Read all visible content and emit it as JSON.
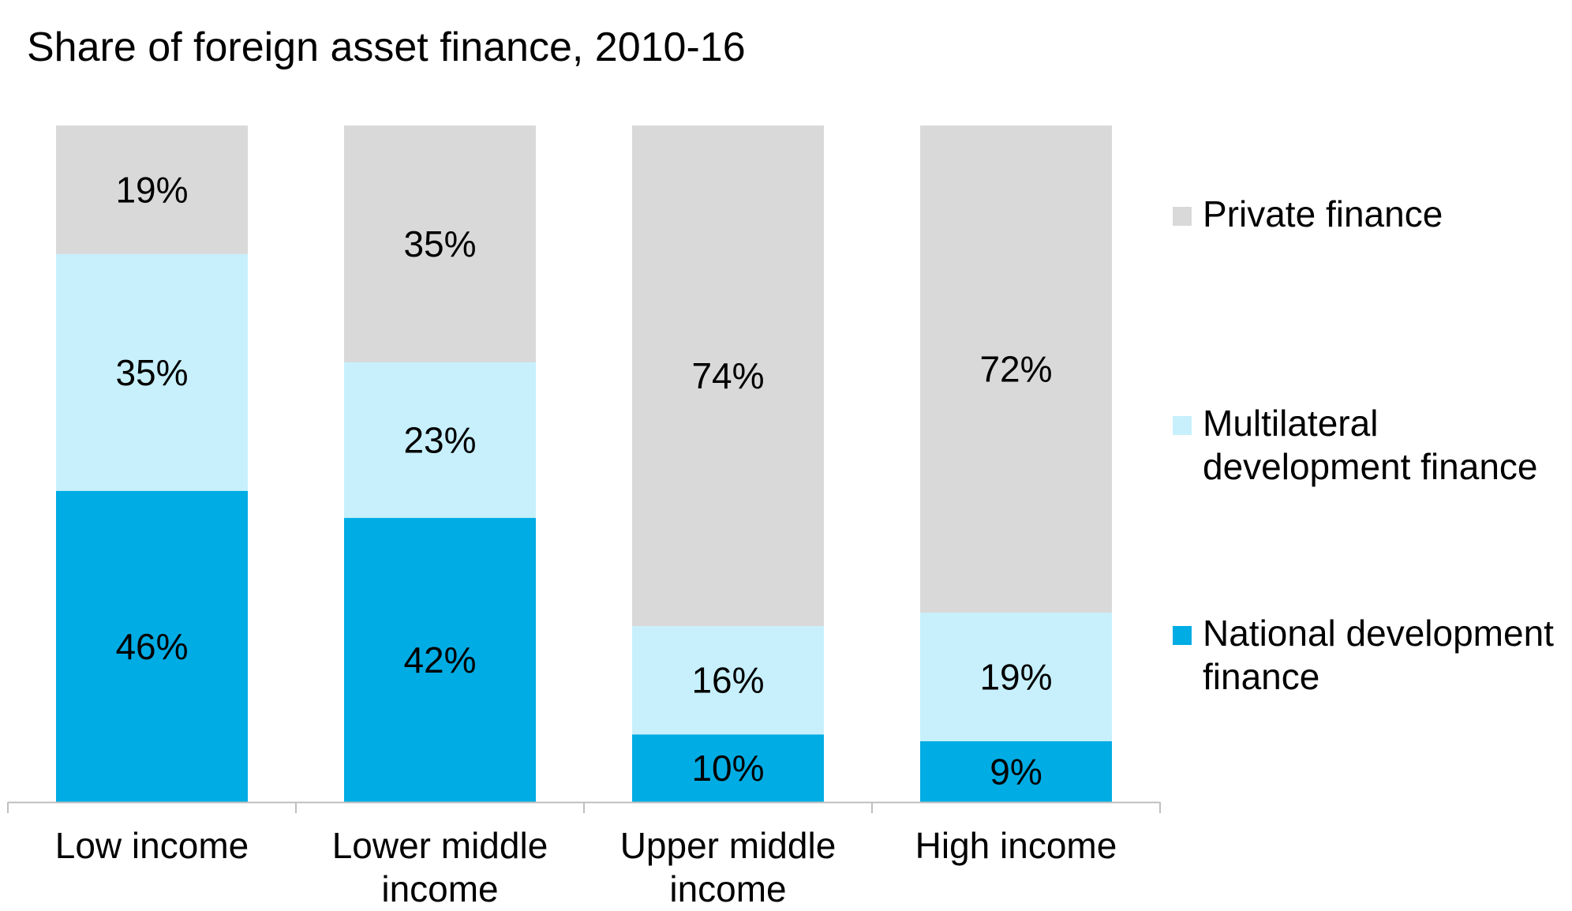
{
  "chart_data": {
    "type": "bar",
    "stacked": true,
    "title": "Share of foreign asset finance, 2010-16",
    "xlabel": "",
    "ylabel": "",
    "ylim": [
      0,
      100
    ],
    "grid": false,
    "legend_position": "right",
    "categories": [
      "Low income",
      "Lower middle income",
      "Upper middle income",
      "High income"
    ],
    "series": [
      {
        "name": "National development finance",
        "color": "#00ACE4",
        "values": [
          46,
          42,
          10,
          9
        ],
        "labels": [
          "46%",
          "42%",
          "10%",
          "9%"
        ]
      },
      {
        "name": "Multilateral development finance",
        "color": "#C7F0FC",
        "values": [
          35,
          23,
          16,
          19
        ],
        "labels": [
          "35%",
          "23%",
          "16%",
          "19%"
        ]
      },
      {
        "name": "Private finance",
        "color": "#D9D9D9",
        "values": [
          19,
          35,
          74,
          72
        ],
        "labels": [
          "19%",
          "35%",
          "74%",
          "72%"
        ]
      }
    ],
    "legend_order": [
      2,
      1,
      0
    ]
  }
}
